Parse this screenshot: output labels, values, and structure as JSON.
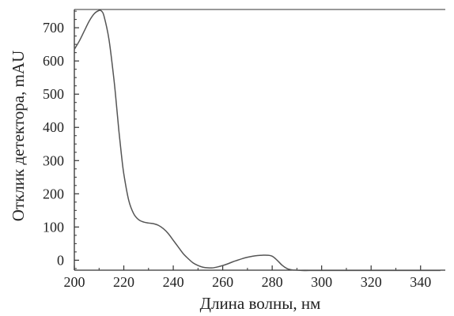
{
  "chart_data": {
    "type": "line",
    "title": "",
    "xlabel": "Длина волны, нм",
    "ylabel": "Отклик детектора, mAU",
    "xlim": [
      200,
      350
    ],
    "ylim": [
      -30,
      755
    ],
    "xticks": [
      200,
      220,
      240,
      260,
      280,
      300,
      320,
      340
    ],
    "yticks": [
      0,
      100,
      200,
      300,
      400,
      500,
      600,
      700
    ],
    "grid": false,
    "legend": "none",
    "line_color": "#555555",
    "series": [
      {
        "x": [
          200,
          202,
          204,
          206,
          208,
          210,
          211,
          212,
          214,
          216,
          217,
          218,
          219,
          220,
          222,
          224,
          226,
          228,
          230,
          232,
          234,
          236,
          238,
          240,
          242,
          244,
          246,
          248,
          250,
          252,
          254,
          256,
          258,
          260,
          262,
          264,
          266,
          268,
          270,
          272,
          274,
          276,
          278,
          280,
          282,
          284,
          286,
          288,
          290,
          292,
          295,
          300,
          310,
          320,
          330,
          340,
          348
        ],
        "y": [
          635,
          660,
          690,
          720,
          742,
          752,
          750,
          735,
          665,
          545,
          470,
          390,
          320,
          260,
          180,
          140,
          122,
          115,
          112,
          110,
          105,
          95,
          80,
          60,
          40,
          20,
          5,
          -8,
          -16,
          -21,
          -23,
          -23,
          -20,
          -16,
          -11,
          -5,
          0,
          5,
          9,
          12,
          14,
          15,
          15,
          12,
          0,
          -15,
          -25,
          -29,
          -30,
          -31,
          -31,
          -31,
          -31,
          -31,
          -31,
          -31,
          -31
        ]
      }
    ]
  }
}
